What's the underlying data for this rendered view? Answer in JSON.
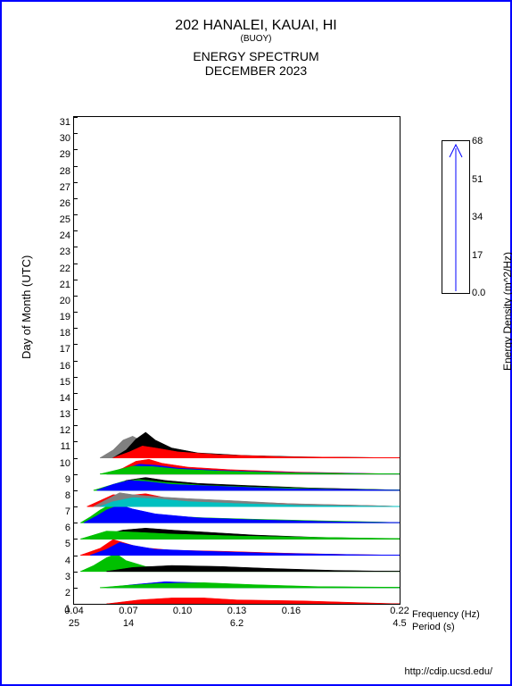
{
  "title": {
    "station": "202 HANALEI, KAUAI, HI",
    "type": "(BUOY)",
    "product": "ENERGY SPECTRUM",
    "date": "DECEMBER 2023"
  },
  "y_axis": {
    "label": "Day of Month (UTC)",
    "min": 1,
    "max": 31,
    "ticks": [
      1,
      2,
      3,
      4,
      5,
      6,
      7,
      8,
      9,
      10,
      11,
      12,
      13,
      14,
      15,
      16,
      17,
      18,
      19,
      20,
      21,
      22,
      23,
      24,
      25,
      26,
      27,
      28,
      29,
      30,
      31
    ]
  },
  "x_axis": {
    "freq_label": "Frequency (Hz)",
    "period_label": "Period (s)",
    "freq_ticks": [
      "0.04",
      "0.07",
      "0.10",
      "0.13",
      "0.16",
      "0.22"
    ],
    "freq_positions": [
      0,
      0.167,
      0.333,
      0.5,
      0.667,
      1.0
    ],
    "period_ticks": [
      "25",
      "14",
      "",
      "6.2",
      "",
      "4.5"
    ],
    "period_positions": [
      0,
      0.167,
      0.333,
      0.5,
      0.667,
      1.0
    ]
  },
  "legend": {
    "label": "Energy Density (m^2/Hz)",
    "ticks": [
      "68",
      "51",
      "34",
      "17",
      "0.0"
    ],
    "tick_positions": [
      0,
      0.25,
      0.5,
      0.75,
      1.0
    ]
  },
  "footer": "http://cdip.ucsd.edu/",
  "colors": {
    "border": "#0000ff",
    "axis": "#000000",
    "series": {
      "red": "#ff0000",
      "green": "#00c000",
      "blue": "#0000ff",
      "black": "#000000",
      "gray": "#808080",
      "cyan": "#00c0c0"
    },
    "background": "#ffffff"
  },
  "spectra": [
    {
      "day": 1,
      "color": "black",
      "points": [
        [
          0.12,
          0
        ],
        [
          0.2,
          0.15
        ],
        [
          0.3,
          0.25
        ],
        [
          0.4,
          0.2
        ],
        [
          0.5,
          0.15
        ],
        [
          0.65,
          0.1
        ],
        [
          0.85,
          0.02
        ],
        [
          1.0,
          0
        ]
      ]
    },
    {
      "day": 1,
      "color": "red",
      "points": [
        [
          0.1,
          0
        ],
        [
          0.2,
          0.2
        ],
        [
          0.3,
          0.3
        ],
        [
          0.4,
          0.3
        ],
        [
          0.5,
          0.2
        ],
        [
          0.7,
          0.15
        ],
        [
          0.9,
          0.05
        ],
        [
          1.0,
          0
        ]
      ]
    },
    {
      "day": 2,
      "color": "blue",
      "points": [
        [
          0.1,
          0
        ],
        [
          0.18,
          0.15
        ],
        [
          0.28,
          0.3
        ],
        [
          0.38,
          0.25
        ],
        [
          0.5,
          0.15
        ],
        [
          0.7,
          0.05
        ],
        [
          0.9,
          0.02
        ],
        [
          1.0,
          0
        ]
      ]
    },
    {
      "day": 2,
      "color": "green",
      "points": [
        [
          0.08,
          0
        ],
        [
          0.15,
          0.1
        ],
        [
          0.25,
          0.2
        ],
        [
          0.4,
          0.25
        ],
        [
          0.55,
          0.15
        ],
        [
          0.75,
          0.05
        ],
        [
          1.0,
          0.02
        ]
      ]
    },
    {
      "day": 3,
      "color": "green",
      "points": [
        [
          0.02,
          0
        ],
        [
          0.06,
          0.3
        ],
        [
          0.1,
          0.7
        ],
        [
          0.13,
          0.9
        ],
        [
          0.16,
          0.55
        ],
        [
          0.22,
          0.25
        ],
        [
          0.35,
          0.15
        ],
        [
          0.5,
          0.1
        ],
        [
          0.7,
          0.05
        ],
        [
          1.0,
          0
        ]
      ]
    },
    {
      "day": 3,
      "color": "black",
      "points": [
        [
          0.1,
          0
        ],
        [
          0.18,
          0.2
        ],
        [
          0.3,
          0.3
        ],
        [
          0.45,
          0.25
        ],
        [
          0.6,
          0.15
        ],
        [
          0.8,
          0.05
        ],
        [
          1.0,
          0
        ]
      ]
    },
    {
      "day": 4,
      "color": "red",
      "points": [
        [
          0.02,
          0
        ],
        [
          0.08,
          0.35
        ],
        [
          0.12,
          0.8
        ],
        [
          0.15,
          0.65
        ],
        [
          0.2,
          0.4
        ],
        [
          0.3,
          0.25
        ],
        [
          0.45,
          0.2
        ],
        [
          0.65,
          0.1
        ],
        [
          0.85,
          0.03
        ],
        [
          1.0,
          0
        ]
      ]
    },
    {
      "day": 4,
      "color": "blue",
      "points": [
        [
          0.05,
          0
        ],
        [
          0.1,
          0.3
        ],
        [
          0.14,
          0.65
        ],
        [
          0.18,
          0.5
        ],
        [
          0.25,
          0.3
        ],
        [
          0.4,
          0.2
        ],
        [
          0.6,
          0.1
        ],
        [
          0.85,
          0.03
        ],
        [
          1.0,
          0
        ]
      ]
    },
    {
      "day": 5,
      "color": "black",
      "points": [
        [
          0.05,
          0
        ],
        [
          0.1,
          0.25
        ],
        [
          0.15,
          0.45
        ],
        [
          0.22,
          0.55
        ],
        [
          0.3,
          0.45
        ],
        [
          0.4,
          0.35
        ],
        [
          0.55,
          0.2
        ],
        [
          0.75,
          0.08
        ],
        [
          1.0,
          0
        ]
      ]
    },
    {
      "day": 5,
      "color": "green",
      "points": [
        [
          0.02,
          0
        ],
        [
          0.06,
          0.2
        ],
        [
          0.1,
          0.4
        ],
        [
          0.18,
          0.35
        ],
        [
          0.3,
          0.25
        ],
        [
          0.5,
          0.15
        ],
        [
          0.75,
          0.08
        ],
        [
          1.0,
          0.02
        ]
      ]
    },
    {
      "day": 6,
      "color": "green",
      "points": [
        [
          0.02,
          0
        ],
        [
          0.05,
          0.3
        ],
        [
          0.08,
          0.65
        ],
        [
          0.12,
          1.0
        ],
        [
          0.15,
          0.85
        ],
        [
          0.2,
          0.55
        ],
        [
          0.28,
          0.35
        ],
        [
          0.4,
          0.25
        ],
        [
          0.55,
          0.18
        ],
        [
          0.75,
          0.1
        ],
        [
          0.95,
          0.03
        ],
        [
          1.0,
          0
        ]
      ]
    },
    {
      "day": 6,
      "color": "blue",
      "points": [
        [
          0.03,
          0
        ],
        [
          0.07,
          0.35
        ],
        [
          0.1,
          0.65
        ],
        [
          0.14,
          0.9
        ],
        [
          0.18,
          0.7
        ],
        [
          0.25,
          0.45
        ],
        [
          0.38,
          0.25
        ],
        [
          0.55,
          0.15
        ],
        [
          0.8,
          0.05
        ],
        [
          1.0,
          0
        ]
      ]
    },
    {
      "day": 7,
      "color": "red",
      "points": [
        [
          0.04,
          0
        ],
        [
          0.08,
          0.3
        ],
        [
          0.12,
          0.6
        ],
        [
          0.16,
          0.55
        ],
        [
          0.22,
          0.65
        ],
        [
          0.28,
          0.45
        ],
        [
          0.38,
          0.3
        ],
        [
          0.5,
          0.25
        ],
        [
          0.7,
          0.12
        ],
        [
          0.95,
          0.03
        ],
        [
          1.0,
          0
        ]
      ]
    },
    {
      "day": 7,
      "color": "gray",
      "points": [
        [
          0.06,
          0
        ],
        [
          0.1,
          0.35
        ],
        [
          0.14,
          0.7
        ],
        [
          0.18,
          0.6
        ],
        [
          0.25,
          0.5
        ],
        [
          0.35,
          0.4
        ],
        [
          0.48,
          0.3
        ],
        [
          0.65,
          0.15
        ],
        [
          0.9,
          0.05
        ],
        [
          1.0,
          0
        ]
      ]
    },
    {
      "day": 7,
      "color": "cyan",
      "points": [
        [
          0.08,
          0
        ],
        [
          0.12,
          0.25
        ],
        [
          0.18,
          0.45
        ],
        [
          0.25,
          0.4
        ],
        [
          0.35,
          0.25
        ],
        [
          0.5,
          0.15
        ],
        [
          0.7,
          0.05
        ],
        [
          1.0,
          0
        ]
      ]
    },
    {
      "day": 8,
      "color": "black",
      "points": [
        [
          0.08,
          0
        ],
        [
          0.12,
          0.25
        ],
        [
          0.16,
          0.5
        ],
        [
          0.22,
          0.65
        ],
        [
          0.28,
          0.5
        ],
        [
          0.38,
          0.35
        ],
        [
          0.52,
          0.25
        ],
        [
          0.72,
          0.12
        ],
        [
          0.95,
          0.03
        ],
        [
          1.0,
          0
        ]
      ]
    },
    {
      "day": 8,
      "color": "green",
      "points": [
        [
          0.06,
          0
        ],
        [
          0.1,
          0.2
        ],
        [
          0.15,
          0.45
        ],
        [
          0.2,
          0.55
        ],
        [
          0.28,
          0.4
        ],
        [
          0.4,
          0.25
        ],
        [
          0.58,
          0.15
        ],
        [
          0.8,
          0.06
        ],
        [
          1.0,
          0.02
        ]
      ]
    },
    {
      "day": 8,
      "color": "blue",
      "points": [
        [
          0.07,
          0
        ],
        [
          0.12,
          0.3
        ],
        [
          0.17,
          0.5
        ],
        [
          0.22,
          0.45
        ],
        [
          0.3,
          0.3
        ],
        [
          0.45,
          0.2
        ],
        [
          0.65,
          0.08
        ],
        [
          0.9,
          0.03
        ],
        [
          1.0,
          0
        ]
      ]
    },
    {
      "day": 9,
      "color": "red",
      "points": [
        [
          0.1,
          0
        ],
        [
          0.15,
          0.3
        ],
        [
          0.19,
          0.65
        ],
        [
          0.23,
          0.75
        ],
        [
          0.27,
          0.55
        ],
        [
          0.35,
          0.35
        ],
        [
          0.48,
          0.22
        ],
        [
          0.68,
          0.1
        ],
        [
          0.9,
          0.03
        ],
        [
          1.0,
          0
        ]
      ]
    },
    {
      "day": 9,
      "color": "blue",
      "points": [
        [
          0.1,
          0
        ],
        [
          0.15,
          0.25
        ],
        [
          0.2,
          0.5
        ],
        [
          0.25,
          0.45
        ],
        [
          0.32,
          0.3
        ],
        [
          0.45,
          0.18
        ],
        [
          0.65,
          0.08
        ],
        [
          0.88,
          0.03
        ],
        [
          1.0,
          0
        ]
      ]
    },
    {
      "day": 9,
      "color": "green",
      "points": [
        [
          0.08,
          0
        ],
        [
          0.13,
          0.2
        ],
        [
          0.18,
          0.4
        ],
        [
          0.24,
          0.38
        ],
        [
          0.32,
          0.25
        ],
        [
          0.45,
          0.15
        ],
        [
          0.65,
          0.06
        ],
        [
          0.88,
          0.02
        ],
        [
          1.0,
          0
        ]
      ]
    },
    {
      "day": 10,
      "color": "gray",
      "points": [
        [
          0.08,
          0
        ],
        [
          0.12,
          0.4
        ],
        [
          0.15,
          0.9
        ],
        [
          0.18,
          1.1
        ],
        [
          0.21,
          0.85
        ],
        [
          0.25,
          0.55
        ],
        [
          0.32,
          0.3
        ],
        [
          0.45,
          0.15
        ],
        [
          0.65,
          0.05
        ],
        [
          1.0,
          0
        ]
      ]
    },
    {
      "day": 10,
      "color": "black",
      "points": [
        [
          0.12,
          0
        ],
        [
          0.16,
          0.4
        ],
        [
          0.19,
          0.95
        ],
        [
          0.22,
          1.3
        ],
        [
          0.25,
          0.9
        ],
        [
          0.3,
          0.5
        ],
        [
          0.38,
          0.25
        ],
        [
          0.52,
          0.12
        ],
        [
          0.72,
          0.04
        ],
        [
          1.0,
          0
        ]
      ]
    },
    {
      "day": 10,
      "color": "red",
      "points": [
        [
          0.12,
          0
        ],
        [
          0.17,
          0.3
        ],
        [
          0.21,
          0.6
        ],
        [
          0.25,
          0.5
        ],
        [
          0.32,
          0.3
        ],
        [
          0.45,
          0.15
        ],
        [
          0.65,
          0.05
        ],
        [
          1.0,
          0
        ]
      ]
    }
  ]
}
